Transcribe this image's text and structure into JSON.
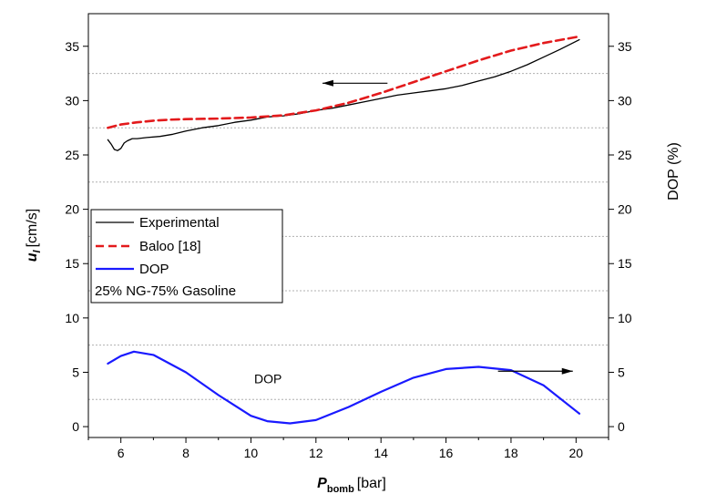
{
  "chart_data": {
    "type": "line",
    "x_label_main": "P",
    "x_label_sub": "bomb",
    "x_label_unit": "[bar]",
    "y_label_main": "u",
    "y_label_sub": "l",
    "y_label_unit": "[cm/s]",
    "y2_label": "DOP (%)",
    "xlim": [
      5,
      21
    ],
    "ylim": [
      -1,
      38
    ],
    "y2lim": [
      -1,
      38
    ],
    "x_ticks": [
      6,
      8,
      10,
      12,
      14,
      16,
      18,
      20
    ],
    "x_tick_labels": [
      "6",
      "8",
      "10",
      "12",
      "14",
      "16",
      "18",
      "20"
    ],
    "y_ticks": [
      0,
      5,
      10,
      15,
      20,
      25,
      30,
      35
    ],
    "y_tick_labels": [
      "0",
      "5",
      "10",
      "15",
      "20",
      "25",
      "30",
      "35"
    ],
    "y2_ticks": [
      0,
      5,
      10,
      15,
      20,
      25,
      30,
      35
    ],
    "y2_tick_labels": [
      "0",
      "5",
      "10",
      "15",
      "20",
      "25",
      "30",
      "35"
    ],
    "grid_y_dotted": [
      2.5,
      7.5,
      12.5,
      17.5,
      22.5,
      27.5,
      32.5
    ],
    "legend_placement": "center-left",
    "legend_note": "25% NG-75% Gasoline",
    "annotations": [
      {
        "text": "DOP",
        "x": 10.1,
        "y": 4.0
      },
      {
        "arrow": "left",
        "x_from": 14.2,
        "x_to": 12.2,
        "y": 31.6
      },
      {
        "arrow": "right",
        "x_from": 17.6,
        "x_to": 19.9,
        "y": 5.1
      }
    ],
    "series": [
      {
        "name": "Experimental",
        "color": "#000000",
        "style": "solid",
        "x": [
          5.6,
          5.7,
          5.8,
          5.9,
          6.0,
          6.1,
          6.2,
          6.35,
          6.5,
          6.8,
          7.2,
          7.6,
          8.0,
          8.5,
          9.0,
          9.5,
          10.0,
          10.5,
          11.0,
          11.5,
          12.0,
          12.5,
          13.0,
          13.5,
          14.0,
          14.5,
          15.0,
          15.5,
          16.0,
          16.5,
          17.0,
          17.5,
          18.0,
          18.5,
          19.0,
          19.5,
          20.1
        ],
        "y": [
          26.4,
          26.0,
          25.5,
          25.4,
          25.6,
          26.1,
          26.3,
          26.5,
          26.5,
          26.6,
          26.7,
          26.9,
          27.2,
          27.5,
          27.7,
          28.0,
          28.2,
          28.5,
          28.6,
          28.8,
          29.1,
          29.3,
          29.6,
          29.9,
          30.2,
          30.5,
          30.7,
          30.9,
          31.1,
          31.4,
          31.8,
          32.2,
          32.7,
          33.3,
          34.0,
          34.7,
          35.6
        ]
      },
      {
        "name": "Baloo [18]",
        "color": "#e31a1c",
        "style": "dashed",
        "x": [
          5.6,
          6.0,
          6.5,
          7.0,
          7.5,
          8.0,
          9.0,
          10.0,
          11.0,
          12.0,
          13.0,
          14.0,
          15.0,
          16.0,
          17.0,
          18.0,
          19.0,
          20.1
        ],
        "y": [
          27.5,
          27.8,
          28.0,
          28.15,
          28.25,
          28.3,
          28.35,
          28.45,
          28.65,
          29.1,
          29.8,
          30.7,
          31.7,
          32.7,
          33.7,
          34.6,
          35.3,
          35.9
        ]
      },
      {
        "name": "DOP",
        "color": "#1a1aff",
        "style": "solid",
        "x": [
          5.6,
          6.0,
          6.4,
          7.0,
          8.0,
          9.0,
          10.0,
          10.5,
          11.2,
          12.0,
          13.0,
          14.0,
          15.0,
          16.0,
          17.0,
          18.0,
          19.0,
          20.1
        ],
        "y": [
          5.8,
          6.5,
          6.9,
          6.6,
          5.0,
          2.9,
          1.0,
          0.5,
          0.3,
          0.6,
          1.8,
          3.2,
          4.5,
          5.3,
          5.5,
          5.2,
          3.8,
          1.2
        ]
      }
    ]
  }
}
